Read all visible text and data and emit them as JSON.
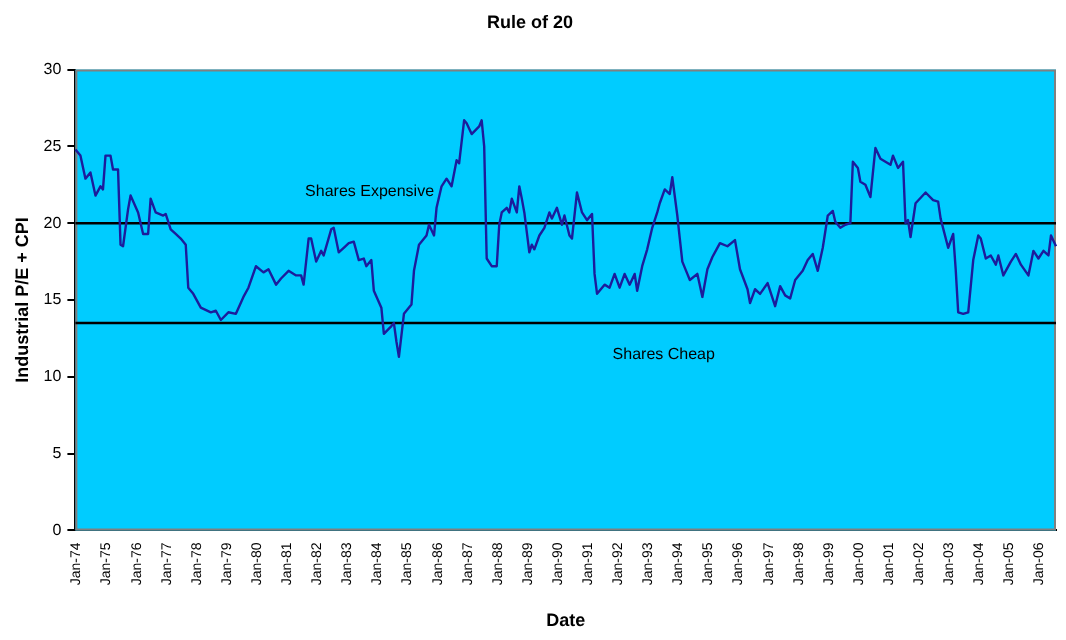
{
  "chart_data": {
    "type": "line",
    "title": "Rule of 20",
    "xlabel": "Date",
    "ylabel": "Industrial P/E + CPI",
    "x": [
      "1974-01",
      "1974-03",
      "1974-05",
      "1974-07",
      "1974-09",
      "1974-11",
      "1974-12",
      "1975-01",
      "1975-03",
      "1975-04",
      "1975-06",
      "1975-07",
      "1975-08",
      "1975-10",
      "1975-11",
      "1976-02",
      "1976-04",
      "1976-06",
      "1976-07",
      "1976-09",
      "1976-12",
      "1977-01",
      "1977-03",
      "1977-05",
      "1977-07",
      "1977-09",
      "1977-10",
      "1977-12",
      "1978-03",
      "1978-07",
      "1978-09",
      "1978-11",
      "1979-02",
      "1979-05",
      "1979-08",
      "1979-10",
      "1980-01",
      "1980-04",
      "1980-06",
      "1980-09",
      "1980-11",
      "1981-02",
      "1981-05",
      "1981-07",
      "1981-08",
      "1981-10",
      "1981-11",
      "1982-01",
      "1982-03",
      "1982-04",
      "1982-07",
      "1982-08",
      "1982-10",
      "1982-12",
      "1983-02",
      "1983-04",
      "1983-06",
      "1983-08",
      "1983-09",
      "1983-11",
      "1983-12",
      "1984-03",
      "1984-04",
      "1984-07",
      "1984-08",
      "1984-09",
      "1984-10",
      "1984-12",
      "1985-03",
      "1985-04",
      "1985-06",
      "1985-09",
      "1985-10",
      "1985-12",
      "1986-01",
      "1986-03",
      "1986-05",
      "1986-07",
      "1986-09",
      "1986-10",
      "1986-12",
      "1987-01",
      "1987-03",
      "1987-06",
      "1987-07",
      "1987-08",
      "1987-09",
      "1987-11",
      "1988-01",
      "1988-02",
      "1988-03",
      "1988-05",
      "1988-06",
      "1988-07",
      "1988-09",
      "1988-10",
      "1988-11",
      "1988-12",
      "1989-02",
      "1989-03",
      "1989-04",
      "1989-06",
      "1989-08",
      "1989-10",
      "1989-11",
      "1990-01",
      "1990-03",
      "1990-04",
      "1990-06",
      "1990-07",
      "1990-09",
      "1990-11",
      "1991-01",
      "1991-03",
      "1991-04",
      "1991-05",
      "1991-08",
      "1991-10",
      "1991-12",
      "1992-02",
      "1992-04",
      "1992-06",
      "1992-08",
      "1992-09",
      "1992-11",
      "1993-01",
      "1993-03",
      "1993-05",
      "1993-06",
      "1993-08",
      "1993-10",
      "1993-11",
      "1994-01",
      "1994-02",
      "1994-03",
      "1994-05",
      "1994-06",
      "1994-09",
      "1994-11",
      "1995-01",
      "1995-03",
      "1995-06",
      "1995-09",
      "1995-12",
      "1996-02",
      "1996-05",
      "1996-06",
      "1996-08",
      "1996-10",
      "1997-01",
      "1997-04",
      "1997-06",
      "1997-08",
      "1997-10",
      "1997-12",
      "1998-03",
      "1998-05",
      "1998-07",
      "1998-09",
      "1998-11",
      "1999-01",
      "1999-03",
      "1999-04",
      "1999-06",
      "1999-08",
      "1999-10",
      "1999-11",
      "2000-01",
      "2000-02",
      "2000-04",
      "2000-06",
      "2000-08",
      "2000-10",
      "2000-12",
      "2001-02",
      "2001-03",
      "2001-05",
      "2001-07",
      "2001-08",
      "2001-09",
      "2001-10",
      "2001-12",
      "2002-04",
      "2002-07",
      "2002-09",
      "2002-10",
      "2003-01",
      "2003-03",
      "2003-04",
      "2003-05",
      "2003-07",
      "2003-09",
      "2003-11",
      "2004-01",
      "2004-02",
      "2004-04",
      "2004-06",
      "2004-08",
      "2004-09",
      "2004-11",
      "2005-02",
      "2005-04",
      "2005-06",
      "2005-09",
      "2005-11",
      "2006-01",
      "2006-03",
      "2006-05",
      "2006-06",
      "2006-08"
    ],
    "series": [
      {
        "color": "#1c1c9c",
        "values": [
          24.8,
          24.4,
          22.9,
          23.3,
          21.8,
          22.4,
          22.2,
          24.4,
          24.4,
          23.5,
          23.5,
          18.6,
          18.5,
          20.9,
          21.8,
          20.7,
          19.3,
          19.3,
          21.6,
          20.7,
          20.5,
          20.6,
          19.6,
          19.3,
          19.0,
          18.6,
          15.8,
          15.4,
          14.5,
          14.2,
          14.3,
          13.7,
          14.2,
          14.1,
          15.2,
          15.8,
          17.2,
          16.8,
          17.0,
          16.0,
          16.4,
          16.9,
          16.6,
          16.6,
          16.0,
          19.0,
          19.0,
          17.5,
          18.2,
          17.9,
          19.6,
          19.7,
          18.1,
          18.4,
          18.7,
          18.8,
          17.6,
          17.7,
          17.2,
          17.6,
          15.6,
          14.5,
          12.8,
          13.3,
          13.5,
          12.3,
          11.3,
          14.1,
          14.7,
          16.9,
          18.6,
          19.2,
          19.9,
          19.2,
          21.0,
          22.4,
          22.9,
          22.4,
          24.1,
          23.9,
          26.7,
          26.5,
          25.8,
          26.3,
          26.7,
          25.0,
          17.7,
          17.2,
          17.2,
          19.9,
          20.7,
          21.0,
          20.7,
          21.6,
          20.7,
          22.4,
          21.6,
          20.7,
          18.1,
          18.6,
          18.3,
          19.2,
          19.7,
          20.7,
          20.3,
          21.0,
          19.9,
          20.5,
          19.2,
          19.0,
          22.0,
          20.7,
          20.2,
          20.6,
          16.7,
          15.4,
          16.0,
          15.8,
          16.7,
          15.8,
          16.7,
          16.0,
          16.7,
          15.6,
          17.2,
          18.3,
          19.7,
          20.7,
          21.3,
          22.2,
          21.9,
          23.0,
          20.5,
          19.0,
          17.5,
          16.7,
          16.3,
          16.7,
          15.2,
          17.0,
          17.8,
          18.7,
          18.5,
          18.9,
          17.0,
          15.7,
          14.8,
          15.7,
          15.4,
          16.1,
          14.6,
          15.9,
          15.3,
          15.1,
          16.3,
          16.9,
          17.6,
          18.0,
          16.9,
          18.4,
          20.5,
          20.8,
          20.1,
          19.7,
          19.9,
          20.0,
          24.0,
          23.6,
          22.7,
          22.5,
          21.7,
          24.9,
          24.2,
          24.0,
          23.8,
          24.4,
          23.6,
          24.0,
          20.0,
          20.2,
          19.1,
          21.3,
          22.0,
          21.5,
          21.4,
          20.3,
          18.4,
          19.3,
          17.0,
          14.2,
          14.1,
          14.2,
          17.6,
          19.2,
          19.0,
          17.7,
          17.9,
          17.3,
          17.9,
          16.6,
          17.5,
          18.0,
          17.3,
          16.6,
          18.2,
          17.7,
          18.2,
          17.9,
          19.2,
          18.5
        ]
      }
    ],
    "xlim": [
      "1974-01",
      "2006-08"
    ],
    "xticks": [
      {
        "value": "1974-01",
        "label": "Jan-74"
      },
      {
        "value": "1975-01",
        "label": "Jan-75"
      },
      {
        "value": "1976-01",
        "label": "Jan-76"
      },
      {
        "value": "1977-01",
        "label": "Jan-77"
      },
      {
        "value": "1978-01",
        "label": "Jan-78"
      },
      {
        "value": "1979-01",
        "label": "Jan-79"
      },
      {
        "value": "1980-01",
        "label": "Jan-80"
      },
      {
        "value": "1981-01",
        "label": "Jan-81"
      },
      {
        "value": "1982-01",
        "label": "Jan-82"
      },
      {
        "value": "1983-01",
        "label": "Jan-83"
      },
      {
        "value": "1984-01",
        "label": "Jan-84"
      },
      {
        "value": "1985-01",
        "label": "Jan-85"
      },
      {
        "value": "1986-01",
        "label": "Jan-86"
      },
      {
        "value": "1987-01",
        "label": "Jan-87"
      },
      {
        "value": "1988-01",
        "label": "Jan-88"
      },
      {
        "value": "1989-01",
        "label": "Jan-89"
      },
      {
        "value": "1990-01",
        "label": "Jan-90"
      },
      {
        "value": "1991-01",
        "label": "Jan-91"
      },
      {
        "value": "1992-01",
        "label": "Jan-92"
      },
      {
        "value": "1993-01",
        "label": "Jan-93"
      },
      {
        "value": "1994-01",
        "label": "Jan-94"
      },
      {
        "value": "1995-01",
        "label": "Jan-95"
      },
      {
        "value": "1996-01",
        "label": "Jan-96"
      },
      {
        "value": "1997-01",
        "label": "Jan-97"
      },
      {
        "value": "1998-01",
        "label": "Jan-98"
      },
      {
        "value": "1999-01",
        "label": "Jan-99"
      },
      {
        "value": "2000-01",
        "label": "Jan-00"
      },
      {
        "value": "2001-01",
        "label": "Jan-01"
      },
      {
        "value": "2002-01",
        "label": "Jan-02"
      },
      {
        "value": "2003-01",
        "label": "Jan-03"
      },
      {
        "value": "2004-01",
        "label": "Jan-04"
      },
      {
        "value": "2005-01",
        "label": "Jan-05"
      },
      {
        "value": "2006-01",
        "label": "Jan-06"
      }
    ],
    "ylim": [
      0,
      30
    ],
    "yticks": [
      0,
      5,
      10,
      15,
      20,
      25,
      30
    ],
    "ref_lines": [
      {
        "axis": "y",
        "value": 20,
        "label": "Shares Expensive",
        "color": "#000000"
      },
      {
        "axis": "y",
        "value": 13.5,
        "label": "Shares Cheap",
        "color": "#000000"
      }
    ],
    "grid": false,
    "legend": false,
    "marker": "none",
    "line_style": "solid"
  }
}
